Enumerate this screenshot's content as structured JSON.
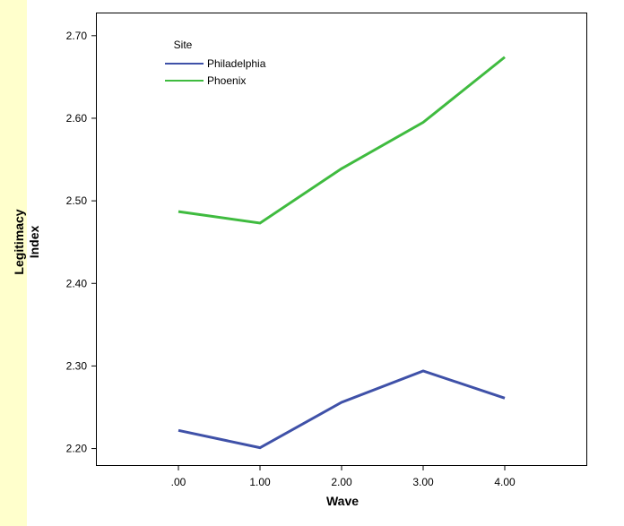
{
  "chart_data": {
    "type": "line",
    "title": "",
    "xlabel": "Wave",
    "ylabel_lines": [
      "Legitimacy",
      "Index"
    ],
    "x": [
      0,
      1,
      2,
      3,
      4
    ],
    "x_tick_labels": [
      ".00",
      "1.00",
      "2.00",
      "3.00",
      "4.00"
    ],
    "xlim": [
      -1,
      5
    ],
    "y_ticks": [
      2.2,
      2.3,
      2.4,
      2.5,
      2.6,
      2.7
    ],
    "y_tick_labels": [
      "2.20",
      "2.30",
      "2.40",
      "2.50",
      "2.60",
      "2.70"
    ],
    "ylim": [
      2.18,
      2.728
    ],
    "grid": false,
    "legend": {
      "title": "Site",
      "placement": "top-left"
    },
    "series": [
      {
        "name": "Philadelphia",
        "color": "#3f51a8",
        "values": [
          2.222,
          2.201,
          2.256,
          2.294,
          2.261
        ]
      },
      {
        "name": "Phoenix",
        "color": "#3fbb3f",
        "values": [
          2.487,
          2.473,
          2.539,
          2.595,
          2.674
        ]
      }
    ]
  }
}
